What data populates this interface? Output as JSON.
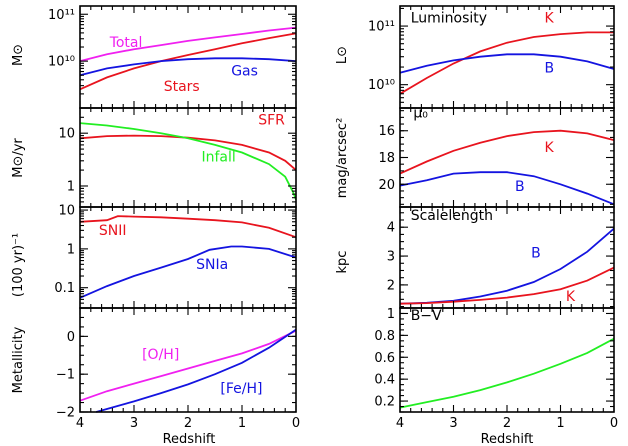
{
  "figure": {
    "xlabel": "Redshift",
    "x_ticks": [
      4,
      3,
      2,
      1,
      0
    ],
    "x_tick_labels": [
      "4",
      "3",
      "2",
      "1",
      "0"
    ],
    "xlim": [
      4,
      0
    ]
  },
  "colors": {
    "red": "#e8141e",
    "blue": "#1414e0",
    "magenta": "#f020f0",
    "green": "#22ee22"
  },
  "chart_data": [
    {
      "type": "line",
      "ylabel": "M⊙",
      "yscale": "log",
      "ylim": [
        1000000000.0,
        150000000000.0
      ],
      "y_ticks": [
        10000000000.0,
        100000000000.0
      ],
      "y_tick_labels": [
        "10¹⁰",
        "10¹¹"
      ],
      "series": [
        {
          "name": "Total",
          "color": "magenta",
          "x": [
            4.0,
            3.5,
            3.0,
            2.5,
            2.0,
            1.5,
            1.0,
            0.5,
            0.0
          ],
          "y": [
            10000000000.0,
            14000000000.0,
            18000000000.0,
            22000000000.0,
            27000000000.0,
            32000000000.0,
            38000000000.0,
            45000000000.0,
            52000000000.0
          ]
        },
        {
          "name": "Stars",
          "color": "red",
          "x": [
            4.0,
            3.5,
            3.0,
            2.5,
            2.0,
            1.5,
            1.0,
            0.5,
            0.0
          ],
          "y": [
            2500000000.0,
            4500000000.0,
            7000000000.0,
            10000000000.0,
            13500000000.0,
            18000000000.0,
            24000000000.0,
            31000000000.0,
            39000000000.0
          ]
        },
        {
          "name": "Gas",
          "color": "blue",
          "x": [
            4.0,
            3.5,
            3.0,
            2.5,
            2.0,
            1.5,
            1.0,
            0.5,
            0.0
          ],
          "y": [
            5000000000.0,
            7000000000.0,
            8500000000.0,
            10000000000.0,
            11000000000.0,
            11500000000.0,
            11500000000.0,
            11000000000.0,
            10000000000.0
          ]
        }
      ],
      "annotations": [
        {
          "text": "Total",
          "color": "magenta",
          "x": 3.45,
          "y": 20000000000.0
        },
        {
          "text": "Stars",
          "color": "red",
          "x": 2.45,
          "y": 2300000000.0
        },
        {
          "text": "Gas",
          "color": "blue",
          "x": 1.2,
          "y": 4900000000.0
        }
      ]
    },
    {
      "type": "line",
      "ylabel": "M⊙/yr",
      "yscale": "log",
      "ylim": [
        0.4,
        30
      ],
      "y_ticks": [
        1,
        10
      ],
      "y_tick_labels": [
        "1",
        "10"
      ],
      "series": [
        {
          "name": "SFR",
          "color": "red",
          "x": [
            4.0,
            3.5,
            3.0,
            2.5,
            2.0,
            1.5,
            1.0,
            0.5,
            0.2,
            0.0
          ],
          "y": [
            8.0,
            8.8,
            9.0,
            8.8,
            8.2,
            7.3,
            6.0,
            4.3,
            3.0,
            2.0
          ]
        },
        {
          "name": "Infall",
          "color": "green",
          "x": [
            4.0,
            3.5,
            3.0,
            2.5,
            2.0,
            1.5,
            1.0,
            0.5,
            0.2,
            0.05,
            0.0
          ],
          "y": [
            15.5,
            14.0,
            12.0,
            10.0,
            8.0,
            6.0,
            4.3,
            2.6,
            1.5,
            0.75,
            0.55
          ]
        }
      ],
      "annotations": [
        {
          "text": "SFR",
          "color": "red",
          "x": 0.7,
          "y": 14.5
        },
        {
          "text": "Infall",
          "color": "green",
          "x": 1.75,
          "y": 2.9
        }
      ]
    },
    {
      "type": "line",
      "ylabel": "(100 yr)⁻¹",
      "yscale": "log",
      "ylim": [
        0.03,
        12
      ],
      "y_ticks": [
        0.1,
        1,
        10
      ],
      "y_tick_labels": [
        "0.1",
        "1",
        "10"
      ],
      "series": [
        {
          "name": "SNII",
          "color": "red",
          "x": [
            4.0,
            3.5,
            3.3,
            3.0,
            2.5,
            2.0,
            1.5,
            1.0,
            0.5,
            0.0
          ],
          "y": [
            5.0,
            5.5,
            7.0,
            6.8,
            6.5,
            6.0,
            5.5,
            4.8,
            3.5,
            2.0
          ]
        },
        {
          "name": "SNIa",
          "color": "blue",
          "x": [
            4.0,
            3.5,
            3.0,
            2.5,
            2.0,
            1.6,
            1.2,
            1.0,
            0.5,
            0.0
          ],
          "y": [
            0.055,
            0.11,
            0.2,
            0.33,
            0.55,
            0.95,
            1.15,
            1.15,
            1.0,
            0.6
          ]
        }
      ],
      "annotations": [
        {
          "text": "SNII",
          "color": "red",
          "x": 3.65,
          "y": 2.3
        },
        {
          "text": "SNIa",
          "color": "blue",
          "x": 1.85,
          "y": 0.3
        }
      ]
    },
    {
      "type": "line",
      "ylabel": "Metallicity",
      "yscale": "linear",
      "ylim": [
        -2,
        0.75
      ],
      "y_ticks": [
        -2,
        -1,
        0
      ],
      "y_tick_labels": [
        "−2",
        "−1",
        "0"
      ],
      "series": [
        {
          "name": "[O/H]",
          "color": "magenta",
          "x": [
            4.0,
            3.5,
            3.0,
            2.5,
            2.0,
            1.5,
            1.0,
            0.5,
            0.0
          ],
          "y": [
            -1.7,
            -1.45,
            -1.25,
            -1.05,
            -0.85,
            -0.65,
            -0.45,
            -0.2,
            0.15
          ]
        },
        {
          "name": "[Fe/H]",
          "color": "blue",
          "x": [
            3.7,
            3.0,
            2.5,
            2.0,
            1.5,
            1.0,
            0.5,
            0.0
          ],
          "y": [
            -2.0,
            -1.72,
            -1.5,
            -1.27,
            -1.0,
            -0.7,
            -0.3,
            0.18
          ]
        }
      ],
      "annotations": [
        {
          "text": "[O/H]",
          "color": "magenta",
          "x": 2.85,
          "y": -0.6
        },
        {
          "text": "[Fe/H]",
          "color": "blue",
          "x": 1.4,
          "y": -1.5
        }
      ]
    },
    {
      "type": "line",
      "ylabel": "L⊙",
      "yscale": "log",
      "ylim": [
        4000000000.0,
        220000000000.0
      ],
      "y_ticks": [
        10000000000.0,
        100000000000.0
      ],
      "y_tick_labels": [
        "10¹⁰",
        "10¹¹"
      ],
      "series": [
        {
          "name": "K",
          "color": "red",
          "x": [
            4.0,
            3.5,
            3.0,
            2.5,
            2.0,
            1.5,
            1.0,
            0.5,
            0.0
          ],
          "y": [
            7000000000.0,
            13000000000.0,
            23000000000.0,
            37000000000.0,
            52000000000.0,
            65000000000.0,
            73000000000.0,
            78000000000.0,
            78000000000.0
          ]
        },
        {
          "name": "B",
          "color": "blue",
          "x": [
            4.0,
            3.5,
            3.0,
            2.5,
            2.0,
            1.5,
            1.0,
            0.5,
            0.0
          ],
          "y": [
            16000000000.0,
            21000000000.0,
            26000000000.0,
            30000000000.0,
            33000000000.0,
            33000000000.0,
            30000000000.0,
            25000000000.0,
            18500000000.0
          ]
        }
      ],
      "annotations": [
        {
          "text": "Luminosity",
          "color": "black",
          "x": 3.8,
          "y": 115000000000.0
        },
        {
          "text": "K",
          "color": "red",
          "x": 1.3,
          "y": 115000000000.0
        },
        {
          "text": "B",
          "color": "blue",
          "x": 1.3,
          "y": 16000000000.0
        }
      ]
    },
    {
      "type": "line",
      "ylabel": "mag/arcsec²",
      "yscale": "linear",
      "y_inverted": true,
      "ylim": [
        21.7,
        14.3
      ],
      "y_ticks": [
        16,
        18,
        20
      ],
      "y_tick_labels": [
        "16",
        "18",
        "20"
      ],
      "series": [
        {
          "name": "K",
          "color": "red",
          "x": [
            4.0,
            3.5,
            3.0,
            2.5,
            2.0,
            1.5,
            1.0,
            0.5,
            0.0
          ],
          "y": [
            19.2,
            18.3,
            17.5,
            16.9,
            16.4,
            16.1,
            16.0,
            16.2,
            16.7
          ]
        },
        {
          "name": "B",
          "color": "blue",
          "x": [
            4.0,
            3.5,
            3.0,
            2.5,
            2.0,
            1.5,
            1.0,
            0.5,
            0.0
          ],
          "y": [
            20.1,
            19.7,
            19.2,
            19.1,
            19.1,
            19.4,
            20.0,
            20.7,
            21.5
          ]
        }
      ],
      "annotations": [
        {
          "text": "μ₀",
          "color": "black",
          "x": 3.75,
          "y": 15.0
        },
        {
          "text": "K",
          "color": "red",
          "x": 1.3,
          "y": 17.6
        },
        {
          "text": "B",
          "color": "blue",
          "x": 1.85,
          "y": 20.5
        }
      ]
    },
    {
      "type": "line",
      "ylabel": "kpc",
      "yscale": "linear",
      "ylim": [
        1.2,
        4.7
      ],
      "y_ticks": [
        2,
        3,
        4
      ],
      "y_tick_labels": [
        "2",
        "3",
        "4"
      ],
      "series": [
        {
          "name": "B",
          "color": "blue",
          "x": [
            4.0,
            3.5,
            3.0,
            2.5,
            2.0,
            1.5,
            1.0,
            0.5,
            0.0
          ],
          "y": [
            1.35,
            1.38,
            1.45,
            1.6,
            1.8,
            2.1,
            2.55,
            3.15,
            3.95
          ]
        },
        {
          "name": "K",
          "color": "red",
          "x": [
            4.0,
            3.5,
            3.0,
            2.5,
            2.0,
            1.5,
            1.0,
            0.5,
            0.0
          ],
          "y": [
            1.35,
            1.37,
            1.42,
            1.48,
            1.56,
            1.68,
            1.85,
            2.15,
            2.6
          ]
        }
      ],
      "annotations": [
        {
          "text": "Scalelength",
          "color": "black",
          "x": 3.8,
          "y": 4.25
        },
        {
          "text": "B",
          "color": "blue",
          "x": 1.55,
          "y": 2.95
        },
        {
          "text": "K",
          "color": "red",
          "x": 0.9,
          "y": 1.45
        }
      ]
    },
    {
      "type": "line",
      "ylabel": "",
      "yscale": "linear",
      "ylim": [
        0.1,
        1.05
      ],
      "y_ticks": [
        0.2,
        0.4,
        0.6,
        0.8,
        1
      ],
      "y_tick_labels": [
        "0.2",
        "0.4",
        "0.6",
        "0.8",
        "1"
      ],
      "series": [
        {
          "name": "B−V",
          "color": "green",
          "x": [
            4.0,
            3.5,
            3.0,
            2.5,
            2.0,
            1.5,
            1.0,
            0.5,
            0.0
          ],
          "y": [
            0.14,
            0.19,
            0.24,
            0.3,
            0.37,
            0.45,
            0.54,
            0.64,
            0.77
          ]
        }
      ],
      "annotations": [
        {
          "text": "B−V",
          "color": "black",
          "x": 3.8,
          "y": 0.94
        }
      ]
    }
  ]
}
